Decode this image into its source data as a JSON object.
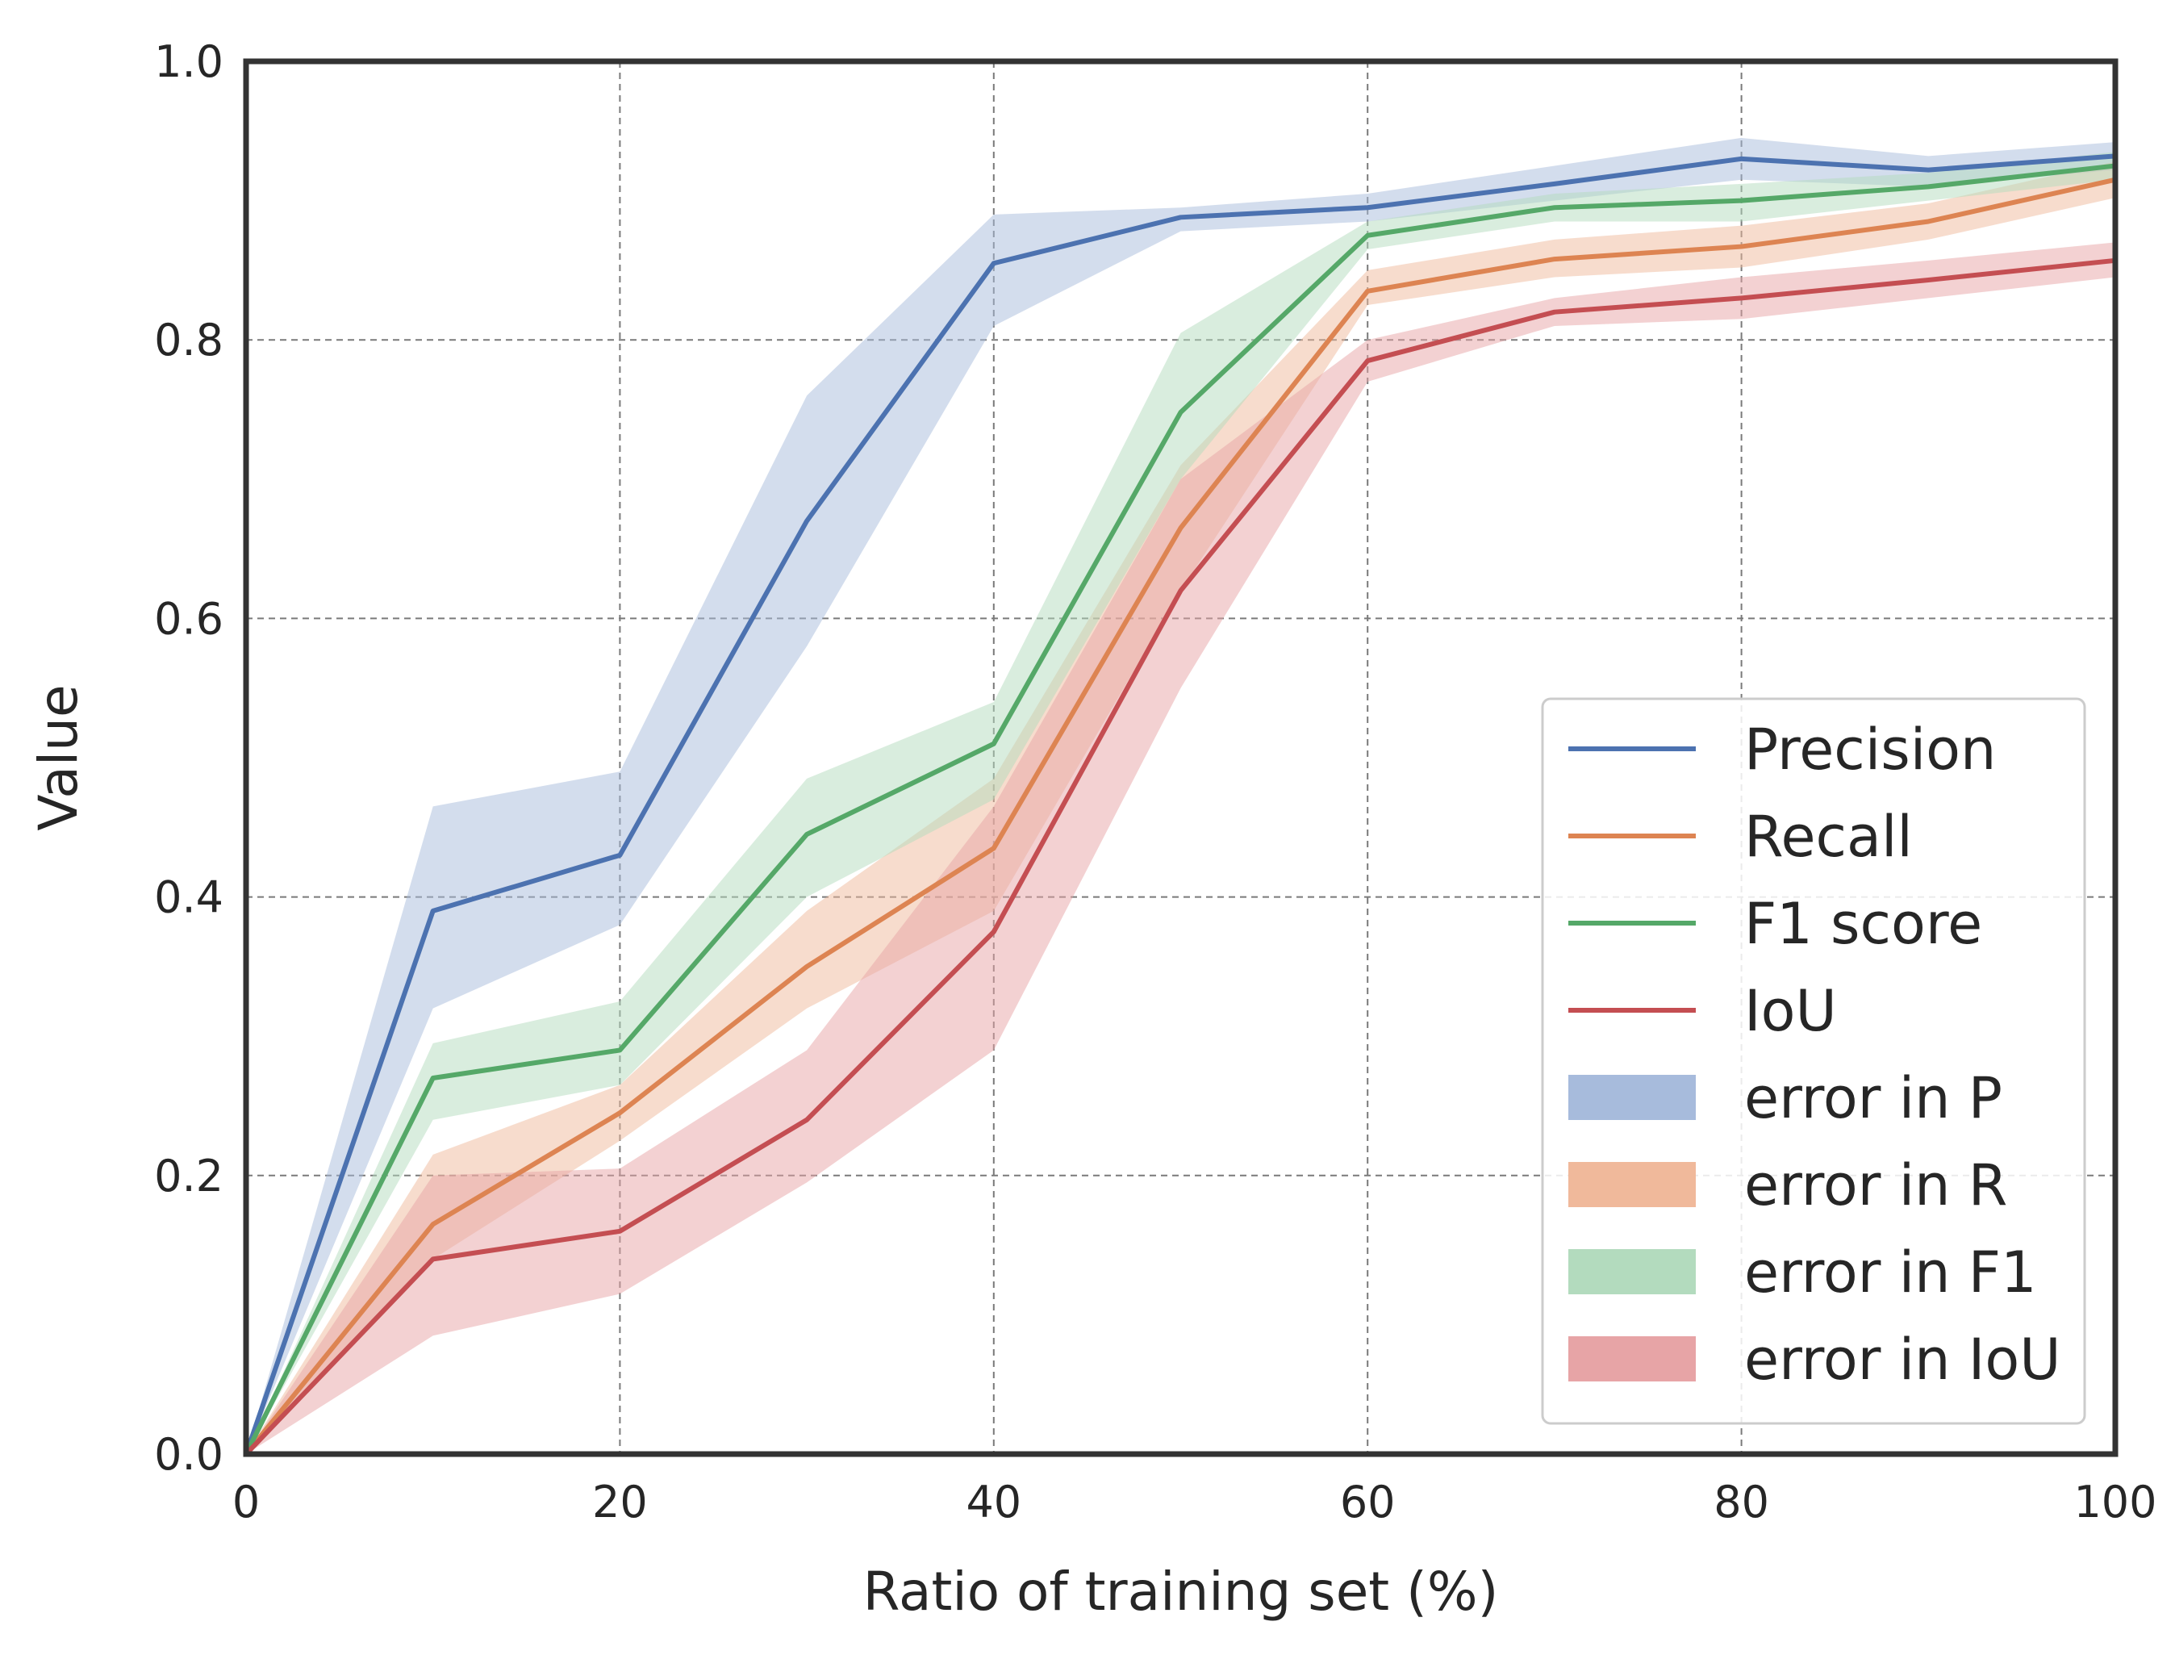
{
  "chart_data": {
    "type": "line",
    "title": "",
    "xlabel": "Ratio of training set (%)",
    "ylabel": "Value",
    "xlim": [
      0,
      100
    ],
    "ylim": [
      0,
      1.0
    ],
    "xticks": [
      0,
      20,
      40,
      60,
      80,
      100
    ],
    "xtick_labels": [
      "0",
      "20",
      "40",
      "60",
      "80",
      "100"
    ],
    "yticks": [
      0,
      0.2,
      0.4,
      0.6,
      0.8,
      1.0
    ],
    "ytick_labels": [
      "0.0",
      "0.2",
      "0.4",
      "0.6",
      "0.8",
      "1.0"
    ],
    "grid": true,
    "legend_position": "lower-right",
    "x": [
      0,
      10,
      20,
      30,
      40,
      50,
      60,
      70,
      80,
      90,
      100
    ],
    "series": [
      {
        "name": "Precision",
        "color": "#4c72b0",
        "values": [
          0.0,
          0.39,
          0.43,
          0.67,
          0.855,
          0.888,
          0.895,
          0.912,
          0.93,
          0.922,
          0.932
        ],
        "band_name": "error in P",
        "band_color": "#a7bbdc",
        "lower": [
          0.0,
          0.32,
          0.38,
          0.58,
          0.81,
          0.878,
          0.885,
          0.9,
          0.915,
          0.91,
          0.922
        ],
        "upper": [
          0.0,
          0.465,
          0.49,
          0.76,
          0.89,
          0.895,
          0.905,
          0.925,
          0.945,
          0.932,
          0.942
        ]
      },
      {
        "name": "Recall",
        "color": "#dd8452",
        "values": [
          0.0,
          0.165,
          0.245,
          0.35,
          0.435,
          0.665,
          0.835,
          0.858,
          0.867,
          0.885,
          0.915
        ],
        "band_name": "error in R",
        "band_color": "#f0b99b",
        "lower": [
          0.0,
          0.14,
          0.225,
          0.32,
          0.39,
          0.62,
          0.825,
          0.845,
          0.852,
          0.872,
          0.902
        ],
        "upper": [
          0.0,
          0.215,
          0.265,
          0.39,
          0.485,
          0.71,
          0.85,
          0.872,
          0.882,
          0.898,
          0.928
        ]
      },
      {
        "name": "F1 score",
        "color": "#55a868",
        "values": [
          0.0,
          0.27,
          0.29,
          0.445,
          0.51,
          0.748,
          0.875,
          0.895,
          0.9,
          0.91,
          0.925
        ],
        "band_name": "error in F1",
        "band_color": "#b3dbbe",
        "lower": [
          0.0,
          0.24,
          0.265,
          0.4,
          0.47,
          0.7,
          0.865,
          0.885,
          0.885,
          0.9,
          0.915
        ],
        "upper": [
          0.0,
          0.295,
          0.325,
          0.485,
          0.54,
          0.805,
          0.885,
          0.905,
          0.912,
          0.92,
          0.935
        ]
      },
      {
        "name": "IoU",
        "color": "#c44e52",
        "values": [
          0.0,
          0.14,
          0.16,
          0.24,
          0.375,
          0.62,
          0.785,
          0.82,
          0.83,
          0.843,
          0.857
        ],
        "band_name": "error in IoU",
        "band_color": "#e7a4a6",
        "lower": [
          0.0,
          0.085,
          0.115,
          0.195,
          0.29,
          0.55,
          0.77,
          0.81,
          0.815,
          0.83,
          0.845
        ],
        "upper": [
          0.0,
          0.2,
          0.205,
          0.29,
          0.465,
          0.7,
          0.8,
          0.83,
          0.845,
          0.857,
          0.87
        ]
      }
    ]
  }
}
